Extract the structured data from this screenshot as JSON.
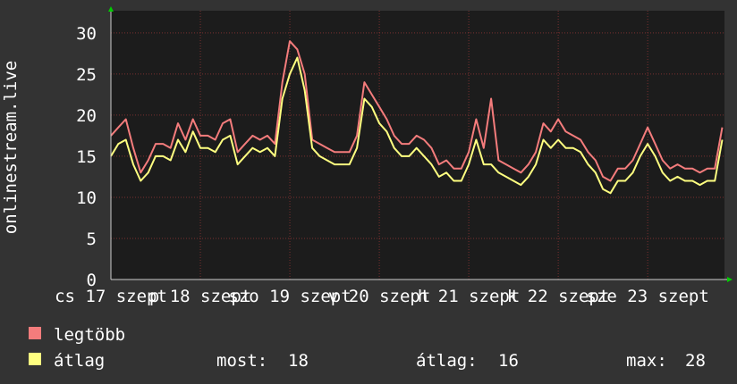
{
  "chart_data": {
    "type": "line",
    "y_label": "onlinestream.live",
    "xlim": [
      0,
      164.6
    ],
    "xticks": [
      {
        "value": 0,
        "label": "cs 17 szept"
      },
      {
        "value": 24,
        "label": "p 18 szept"
      },
      {
        "value": 48,
        "label": "szo 19 szept"
      },
      {
        "value": 72,
        "label": "v 20 szept"
      },
      {
        "value": 96,
        "label": "h 21 szept"
      },
      {
        "value": 120,
        "label": "k 22 szept"
      },
      {
        "value": 144,
        "label": "sze 23 szept"
      }
    ],
    "ylim": [
      0,
      32.7
    ],
    "yticks": [
      0,
      5,
      10,
      15,
      20,
      25,
      30
    ],
    "grid": true,
    "x": [
      0,
      2,
      4,
      6,
      8,
      10,
      12,
      14,
      16,
      18,
      20,
      22,
      24,
      26,
      28,
      30,
      32,
      34,
      36,
      38,
      40,
      42,
      44,
      46,
      48,
      50,
      52,
      54,
      56,
      58,
      60,
      62,
      64,
      66,
      68,
      70,
      72,
      74,
      76,
      78,
      80,
      82,
      84,
      86,
      88,
      90,
      92,
      94,
      96,
      98,
      100,
      102,
      104,
      106,
      108,
      110,
      112,
      114,
      116,
      118,
      120,
      122,
      124,
      126,
      128,
      130,
      132,
      134,
      136,
      138,
      140,
      142,
      144,
      146,
      148,
      150,
      152,
      154,
      156,
      158,
      160,
      162,
      164
    ],
    "series": [
      {
        "name": "legtöbb",
        "color": "#f47c7c",
        "values": [
          17.5,
          18.5,
          19.5,
          16,
          13,
          14.5,
          16.5,
          16.5,
          16,
          19,
          17,
          19.5,
          17.5,
          17.5,
          17,
          19,
          19.5,
          15.5,
          16.5,
          17.5,
          17,
          17.5,
          16.5,
          24,
          29,
          28,
          25,
          17,
          16.5,
          16,
          15.5,
          15.5,
          15.5,
          17.5,
          24,
          22.5,
          21,
          19.5,
          17.5,
          16.5,
          16.5,
          17.5,
          17,
          16,
          14,
          14.5,
          13.5,
          13.5,
          15.5,
          19.5,
          16,
          22,
          14.5,
          14,
          13.5,
          13,
          14,
          15.5,
          19,
          18,
          19.5,
          18,
          17.5,
          17,
          15.5,
          14.5,
          12.5,
          12,
          13.5,
          13.5,
          14.5,
          16.5,
          18.5,
          16.5,
          14.5,
          13.5,
          14,
          13.5,
          13.5,
          13,
          13.5,
          13.5,
          18.5
        ]
      },
      {
        "name": "átlag",
        "color": "#ffff80",
        "values": [
          15,
          16.5,
          17,
          14,
          12,
          13,
          15,
          15,
          14.5,
          17,
          15.5,
          18,
          16,
          16,
          15.5,
          17,
          17.5,
          14,
          15,
          16,
          15.5,
          16,
          15,
          22,
          25,
          27,
          23,
          16,
          15,
          14.5,
          14,
          14,
          14,
          16,
          22,
          21,
          19,
          18,
          16,
          15,
          15,
          16,
          15,
          14,
          12.5,
          13,
          12,
          12,
          14,
          17,
          14,
          14,
          13,
          12.5,
          12,
          11.5,
          12.5,
          14,
          17,
          16,
          17,
          16,
          16,
          15.5,
          14,
          13,
          11,
          10.5,
          12,
          12,
          13,
          15,
          16.5,
          15,
          13,
          12,
          12.5,
          12,
          12,
          11.5,
          12,
          12,
          17
        ]
      }
    ],
    "stats": [
      {
        "label": "most:",
        "value": 18
      },
      {
        "label": "átlag:",
        "value": 16
      },
      {
        "label": "max:",
        "value": 28
      }
    ]
  }
}
